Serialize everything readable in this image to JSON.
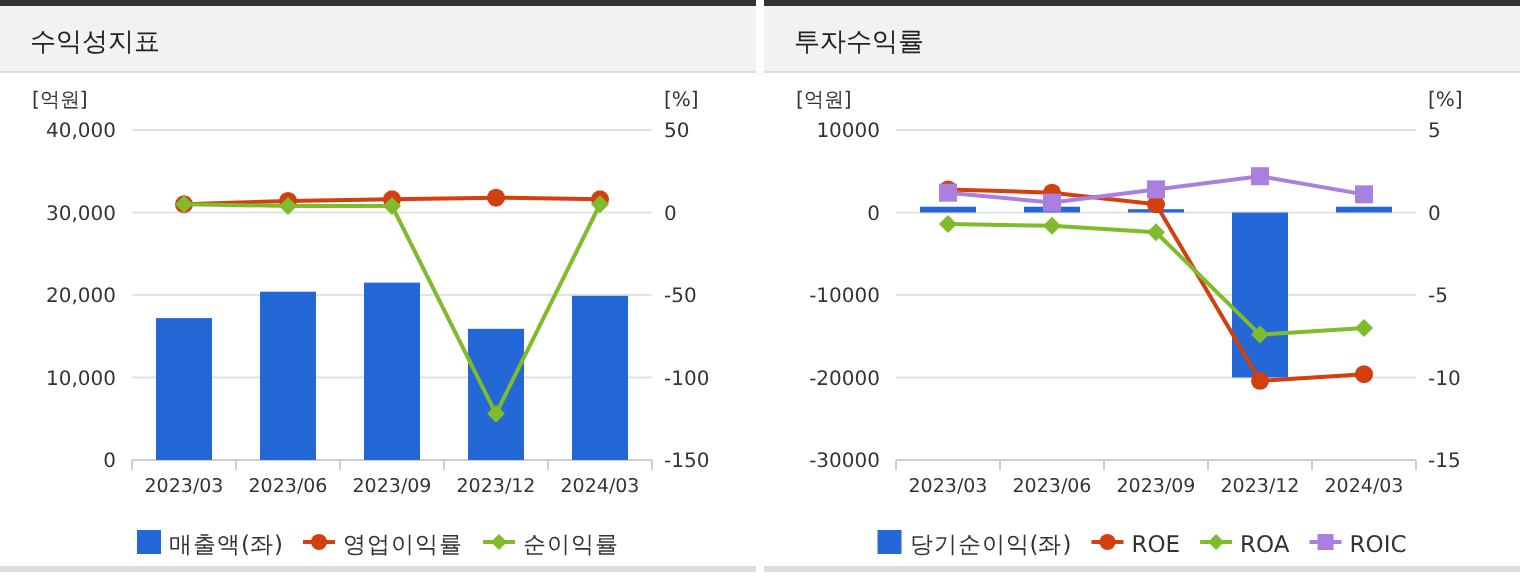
{
  "chart_data": [
    {
      "type": "bar",
      "title": "수익성지표",
      "ylabel": "[억원]",
      "y2label": "[%]",
      "categories": [
        "2023/03",
        "2023/06",
        "2023/09",
        "2023/12",
        "2024/03"
      ],
      "series": [
        {
          "name": "매출액(좌)",
          "color": "#2468d8",
          "values": [
            17200,
            20400,
            21500,
            15900,
            19900
          ]
        },
        {
          "name": "영업이익률",
          "type": "line",
          "axis": "y2",
          "marker": "circle",
          "color": "#d33f0f",
          "values": [
            5,
            7,
            8,
            9,
            8
          ]
        },
        {
          "name": "순이익률",
          "type": "line",
          "axis": "y2",
          "marker": "diamond",
          "color": "#80bb2b",
          "values": [
            5,
            4,
            4,
            -122,
            5
          ]
        }
      ],
      "ylim": [
        0,
        40000
      ],
      "yticks": [
        0,
        {
          "value": 10000,
          "label": "10,000"
        },
        {
          "value": 20000,
          "label": "20,000"
        },
        {
          "value": 30000,
          "label": "30,000"
        },
        {
          "value": 40000,
          "label": "40,000"
        }
      ],
      "y2lim": [
        -150,
        50
      ],
      "y2ticks": [
        -150,
        -100,
        -50,
        0,
        50
      ],
      "grid": "y",
      "legend": "bottom"
    },
    {
      "type": "bar",
      "title": "투자수익률",
      "ylabel": "[억원]",
      "y2label": "[%]",
      "categories": [
        "2023/03",
        "2023/06",
        "2023/09",
        "2023/12",
        "2024/03"
      ],
      "series": [
        {
          "name": "당기순이익(좌)",
          "color": "#2468d8",
          "values": [
            700,
            700,
            400,
            -20000,
            700
          ]
        },
        {
          "name": "ROE",
          "type": "line",
          "axis": "y2",
          "marker": "circle",
          "color": "#d33f0f",
          "values": [
            1.4,
            1.2,
            0.5,
            -10.2,
            -9.8
          ]
        },
        {
          "name": "ROA",
          "type": "line",
          "axis": "y2",
          "marker": "diamond",
          "color": "#80bb2b",
          "values": [
            -0.7,
            -0.8,
            -1.2,
            -7.4,
            -7.0
          ]
        },
        {
          "name": "ROIC",
          "type": "line",
          "axis": "y2",
          "marker": "square",
          "color": "#a97fe0",
          "values": [
            1.2,
            0.6,
            1.4,
            2.2,
            1.1
          ]
        }
      ],
      "ylim": [
        -30000,
        10000
      ],
      "yticks": [
        -30000,
        -20000,
        -10000,
        0,
        10000
      ],
      "y2lim": [
        -15,
        5
      ],
      "y2ticks": [
        -15,
        -10,
        -5,
        0,
        5
      ],
      "grid": "y",
      "legend": "bottom"
    }
  ]
}
